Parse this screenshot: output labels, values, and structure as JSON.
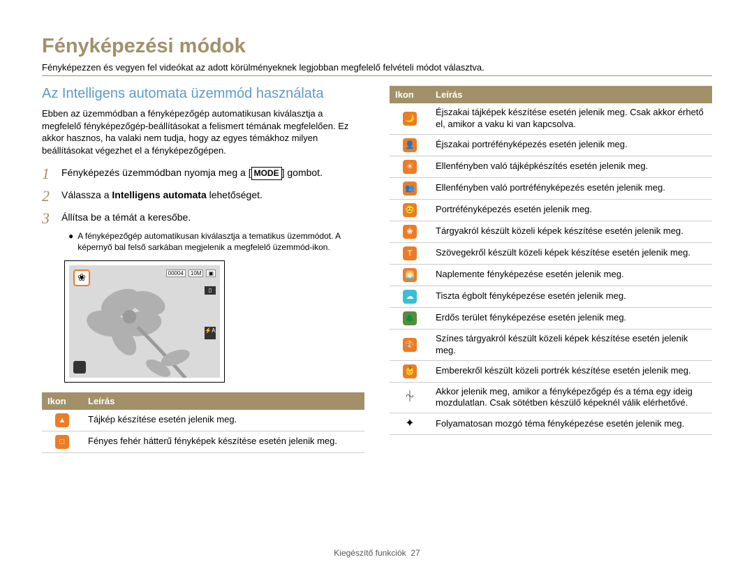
{
  "title": "Fényképezési módok",
  "subtitle": "Fényképezzen és vegyen fel videókat az adott körülményeknek legjobban megfelelő felvételi módot választva.",
  "section_heading": "Az Intelligens automata üzemmód használata",
  "intro_para": "Ebben az üzemmódban a fényképezőgép automatikusan kiválasztja a megfelelő fényképezőgép-beállításokat a felismert témának megfelelően. Ez akkor hasznos, ha valaki nem tudja, hogy az egyes témákhoz milyen beállításokat végezhet el a fényképezőgépen.",
  "steps": {
    "s1_pre": "Fényképezés üzemmódban nyomja meg a ",
    "s1_mode": "MODE",
    "s1_post": " gombot.",
    "s2_pre": "Válassza a ",
    "s2_bold": "Intelligens automata",
    "s2_post": " lehetőséget.",
    "s3": "Állítsa be a témát a keresőbe."
  },
  "bullet": "A fényképezőgép automatikusan kiválasztja a tematikus üzemmódot. A képernyő bal felső sarkában megjelenik a megfelelő üzemmód-ikon.",
  "preview": {
    "counter": "00004",
    "iso": "10M"
  },
  "table_headers": {
    "icon": "Ikon",
    "desc": "Leírás"
  },
  "left_rows": [
    {
      "color": "#ec7c26",
      "glyph": "▲",
      "desc": "Tájkép készítése esetén jelenik meg."
    },
    {
      "color": "#ec7c26",
      "glyph": "□",
      "desc": "Fényes fehér hátterű fényképek készítése esetén jelenik meg."
    }
  ],
  "right_rows": [
    {
      "color": "#ec7c26",
      "glyph": "🌙",
      "desc": "Éjszakai tájképek készítése esetén jelenik meg. Csak akkor érhető el, amikor a vaku ki van kapcsolva."
    },
    {
      "color": "#ec7c26",
      "glyph": "👤",
      "desc": "Éjszakai portréfényképezés esetén jelenik meg."
    },
    {
      "color": "#ec7c26",
      "glyph": "☀",
      "desc": "Ellenfényben való tájképkészítés esetén jelenik meg."
    },
    {
      "color": "#ec7c26",
      "glyph": "👥",
      "desc": "Ellenfényben való portréfényképezés esetén jelenik meg."
    },
    {
      "color": "#ec7c26",
      "glyph": "😊",
      "desc": "Portréfényképezés esetén jelenik meg."
    },
    {
      "color": "#ec7c26",
      "glyph": "❀",
      "desc": "Tárgyakról készült közeli képek készítése esetén jelenik meg."
    },
    {
      "color": "#ec7c26",
      "glyph": "T",
      "desc": "Szövegekről készült közeli képek készítése esetén jelenik meg."
    },
    {
      "color": "#ec7c26",
      "glyph": "🌅",
      "desc": "Naplemente fényképezése esetén jelenik meg."
    },
    {
      "color": "#3bbfd4",
      "glyph": "☁",
      "desc": "Tiszta égbolt fényképezése esetén jelenik meg."
    },
    {
      "color": "#5a8a3a",
      "glyph": "🌲",
      "desc": "Erdős terület fényképezése esetén jelenik meg."
    },
    {
      "color": "#ec7c26",
      "glyph": "🎨",
      "desc": "Színes tárgyakról készült közeli képek készítése esetén jelenik meg."
    },
    {
      "color": "#ec7c26",
      "glyph": "👶",
      "desc": "Emberekről készült közeli portrék készítése esetén jelenik meg."
    },
    {
      "plain": true,
      "glyph": "⏆",
      "desc": "Akkor jelenik meg, amikor a fényképezőgép és a téma egy ideig mozdulatlan. Csak sötétben készülő képeknél válik elérhetővé."
    },
    {
      "plain": true,
      "glyph": "✦",
      "desc": "Folyamatosan mozgó téma fényképezése esetén jelenik meg."
    }
  ],
  "footer": {
    "label": "Kiegészítő funkciók",
    "page": "27"
  },
  "colors": {
    "accent_tan": "#a29069",
    "heading_blue": "#5d9bc6",
    "icon_orange": "#ec7c26"
  }
}
